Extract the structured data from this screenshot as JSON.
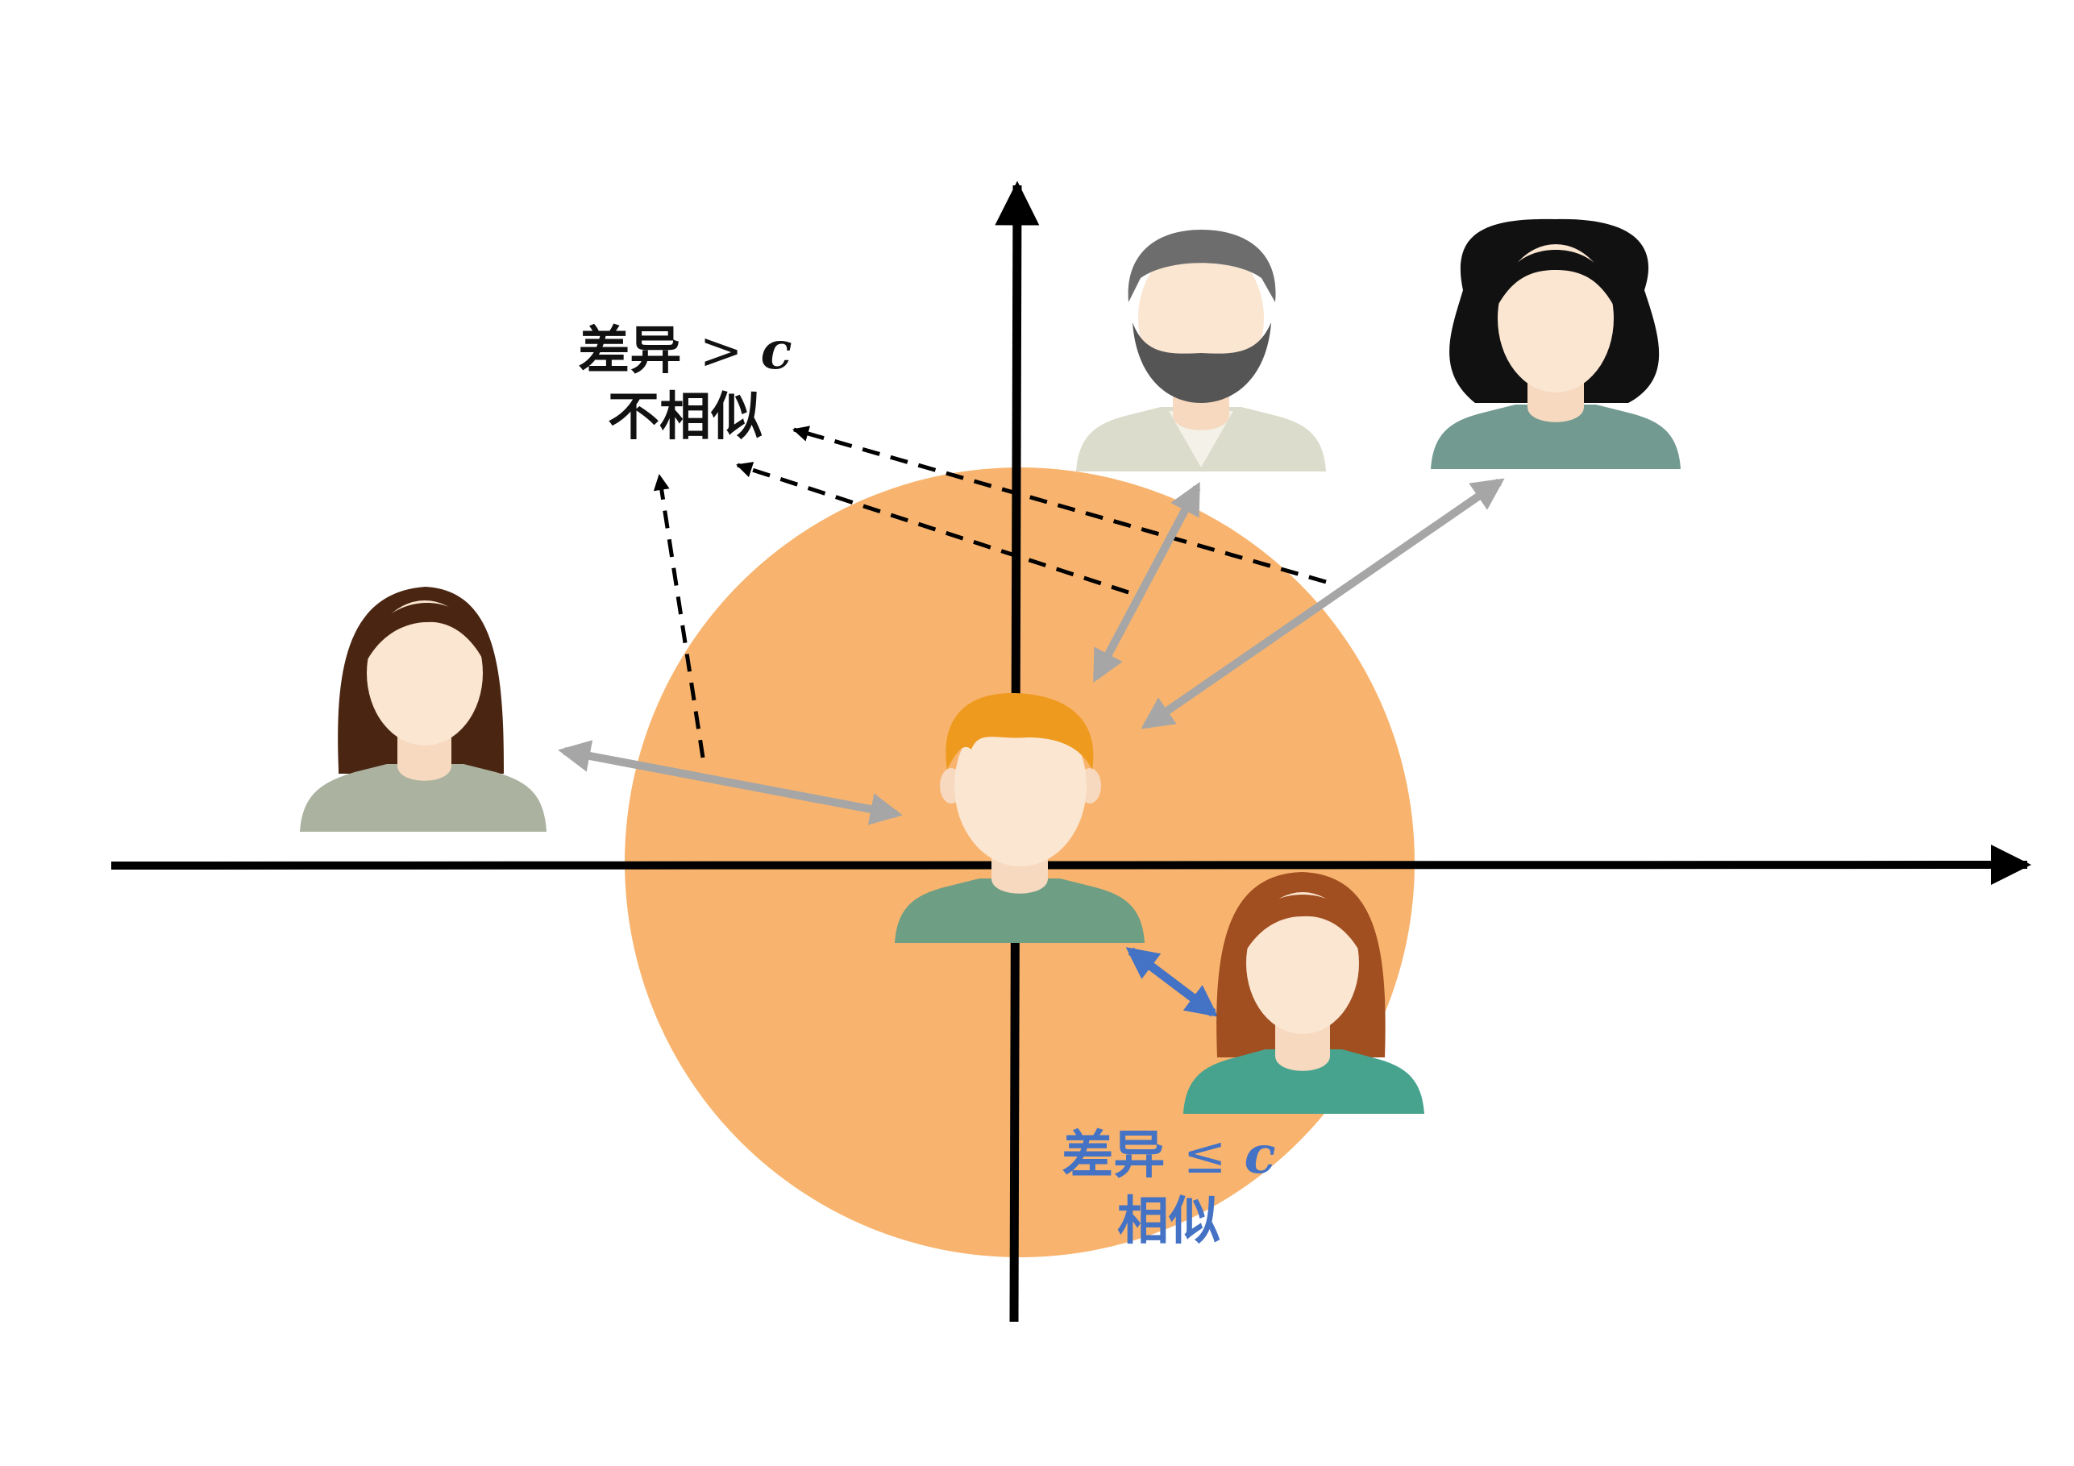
{
  "colors": {
    "background": "#ffffff",
    "circle": "#F8B46E",
    "axis": "#000000",
    "dissimilar_arrow": "#A6A6A6",
    "similar_arrow": "#4472C4",
    "dissimilar_text": "#111111",
    "similar_text": "#4472C4"
  },
  "labels": {
    "dissimilar": {
      "prefix": "差异",
      "operator": ">",
      "variable": "c",
      "caption": "不相似"
    },
    "similar": {
      "prefix": "差异",
      "operator": "≤",
      "variable": "c",
      "caption": "相似"
    }
  },
  "people": [
    {
      "name": "center-man-avatar",
      "hair": "#EE9A1E",
      "shirt": "#6E9E84"
    },
    {
      "name": "similar-woman-avatar",
      "hair": "#A14F20",
      "shirt": "#47A38D"
    },
    {
      "name": "long-hair-woman-avatar",
      "hair": "#4A2612",
      "shirt": "#ABB3A0"
    },
    {
      "name": "bearded-man-avatar",
      "hair": "#6D6D6D",
      "shirt": "#DBDCCB"
    },
    {
      "name": "curly-hair-woman-avatar",
      "hair": "#111111",
      "shirt": "#739A91"
    }
  ]
}
